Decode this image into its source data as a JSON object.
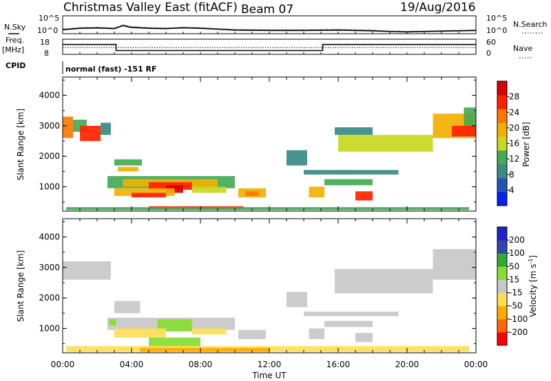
{
  "header": {
    "title": "Christmas Valley East (fitACF)",
    "beam": "Beam 07",
    "date": "19/Aug/2016"
  },
  "top_panels": {
    "nsky_label": "N.Sky",
    "nsearch_label": "N.Search",
    "noise_ticks_left": [
      "10^5",
      "10^0"
    ],
    "noise_ticks_right": [
      "10^5",
      "10^0"
    ],
    "freq_label_lines": [
      "Freq.",
      "[MHz]"
    ],
    "freq_ticks": [
      "18",
      "8"
    ],
    "nave_label": "Nave",
    "nave_ticks": [
      "60",
      "0"
    ],
    "cpid_label": "CPID",
    "cpid_text": "normal (fast) -151 RF"
  },
  "colors": {
    "power": [
      "#0022ee",
      "#2255bb",
      "#3a8a86",
      "#44aa55",
      "#c8d820",
      "#f2b000",
      "#ff7700",
      "#ff2200",
      "#d80000"
    ],
    "velocity": [
      "#ff0000",
      "#ff6600",
      "#ffaa00",
      "#ffdd55",
      "#c8c8c8",
      "#88dd33",
      "#33aa33",
      "#3344aa",
      "#2222cc"
    ],
    "ground_scatter": "#c8c8c8"
  },
  "chart_data": [
    {
      "type": "line",
      "name": "noise",
      "series": [
        {
          "name": "N.Sky",
          "style": "solid"
        },
        {
          "name": "N.Search",
          "style": "dotted"
        }
      ],
      "x": [
        0,
        1,
        2,
        3,
        3.5,
        4,
        5,
        6,
        7,
        8,
        9,
        10,
        12,
        14,
        16,
        18,
        19,
        20,
        22,
        24
      ],
      "y_solid": [
        2.2,
        3.0,
        3.2,
        2.8,
        4.5,
        3.5,
        3.0,
        2.8,
        3.3,
        3.0,
        2.5,
        2.0,
        1.8,
        1.8,
        2.0,
        1.6,
        1.2,
        1.0,
        1.4,
        1.8
      ],
      "y_dotted": [
        2.6,
        3.4,
        3.6,
        3.2,
        5.0,
        4.0,
        3.4,
        3.2,
        3.6,
        3.4,
        2.9,
        2.4,
        2.2,
        2.2,
        2.4,
        2.0,
        1.5,
        1.3,
        1.7,
        2.1
      ],
      "ylim": [
        0,
        10
      ],
      "ytick_labels": [
        "10^0",
        "10^5"
      ]
    },
    {
      "type": "line",
      "name": "frequency-nave",
      "frequency": {
        "x": [
          0,
          3.1,
          3.1,
          15.1,
          15.1,
          24
        ],
        "y": [
          14.5,
          14.5,
          10.5,
          10.5,
          14.5,
          14.5
        ],
        "ylim": [
          8,
          18
        ]
      },
      "nave": {
        "x": [
          0,
          3.1,
          3.1,
          15.1,
          15.1,
          24
        ],
        "y": [
          27,
          27,
          27,
          27,
          27,
          27
        ],
        "ylim": [
          0,
          60
        ]
      }
    },
    {
      "type": "heatmap",
      "name": "power",
      "ylabel": "Slant Range [km]",
      "yticks": [
        1000,
        2000,
        3000,
        4000
      ],
      "ylim": [
        200,
        4600
      ],
      "xlim": [
        0,
        24
      ],
      "colorbar": {
        "label": "Power [dB]",
        "ticks": [
          4,
          8,
          12,
          16,
          20,
          24,
          28
        ],
        "range": [
          0,
          32
        ]
      },
      "regions": [
        {
          "t0": 0.0,
          "t1": 0.6,
          "r0": 2600,
          "r1": 3300,
          "value": 22
        },
        {
          "t0": 0.6,
          "t1": 1.4,
          "r0": 2800,
          "r1": 3200,
          "value": 14
        },
        {
          "t0": 1.0,
          "t1": 2.2,
          "r0": 2500,
          "r1": 3000,
          "value": 26
        },
        {
          "t0": 2.2,
          "t1": 2.8,
          "r0": 2700,
          "r1": 3100,
          "value": 10
        },
        {
          "t0": 3.0,
          "t1": 4.6,
          "r0": 1700,
          "r1": 1900,
          "value": 14
        },
        {
          "t0": 3.2,
          "t1": 4.4,
          "r0": 1500,
          "r1": 1650,
          "value": 18
        },
        {
          "t0": 2.6,
          "t1": 10.0,
          "r0": 950,
          "r1": 1350,
          "value": 12
        },
        {
          "t0": 3.5,
          "t1": 9.0,
          "r0": 1000,
          "r1": 1250,
          "value": 20
        },
        {
          "t0": 5.0,
          "t1": 7.5,
          "r0": 900,
          "r1": 1150,
          "value": 27
        },
        {
          "t0": 6.0,
          "t1": 7.0,
          "r0": 800,
          "r1": 1050,
          "value": 30
        },
        {
          "t0": 3.0,
          "t1": 6.5,
          "r0": 700,
          "r1": 950,
          "value": 18
        },
        {
          "t0": 4.0,
          "t1": 6.0,
          "r0": 650,
          "r1": 800,
          "value": 26
        },
        {
          "t0": 7.5,
          "t1": 9.5,
          "r0": 800,
          "r1": 1000,
          "value": 16
        },
        {
          "t0": 10.2,
          "t1": 11.8,
          "r0": 650,
          "r1": 950,
          "value": 18
        },
        {
          "t0": 10.6,
          "t1": 11.4,
          "r0": 700,
          "r1": 850,
          "value": 24
        },
        {
          "t0": 5.0,
          "t1": 10.5,
          "r0": 260,
          "r1": 360,
          "value": 26
        },
        {
          "t0": 0.2,
          "t1": 23.6,
          "r0": 230,
          "r1": 330,
          "value": 12
        },
        {
          "t0": 13.0,
          "t1": 14.2,
          "r0": 1700,
          "r1": 2200,
          "value": 10
        },
        {
          "t0": 14.0,
          "t1": 19.5,
          "r0": 1400,
          "r1": 1550,
          "value": 8
        },
        {
          "t0": 14.3,
          "t1": 15.2,
          "r0": 650,
          "r1": 1000,
          "value": 18
        },
        {
          "t0": 15.2,
          "t1": 18.0,
          "r0": 1050,
          "r1": 1250,
          "value": 12
        },
        {
          "t0": 17.0,
          "t1": 18.0,
          "r0": 550,
          "r1": 850,
          "value": 26
        },
        {
          "t0": 15.8,
          "t1": 18.0,
          "r0": 2700,
          "r1": 2950,
          "value": 10
        },
        {
          "t0": 16.0,
          "t1": 21.5,
          "r0": 2150,
          "r1": 2700,
          "value": 17
        },
        {
          "t0": 21.5,
          "t1": 24.0,
          "r0": 2600,
          "r1": 3400,
          "value": 20
        },
        {
          "t0": 22.6,
          "t1": 24.0,
          "r0": 2650,
          "r1": 3000,
          "value": 28
        },
        {
          "t0": 23.3,
          "t1": 24.0,
          "r0": 3000,
          "r1": 3600,
          "value": 12
        }
      ]
    },
    {
      "type": "heatmap",
      "name": "velocity",
      "ylabel": "Slant Range [km]",
      "yticks": [
        1000,
        2000,
        3000,
        4000
      ],
      "ylim": [
        200,
        4600
      ],
      "xlim": [
        0,
        24
      ],
      "xlabel": "Time UT",
      "xticks": [
        0,
        4,
        8,
        12,
        16,
        20,
        24
      ],
      "xtick_labels": [
        "00:00",
        "04:00",
        "08:00",
        "12:00",
        "16:00",
        "20:00",
        "00:00"
      ],
      "colorbar": {
        "label": "Velocity [m s^-1]",
        "ticks": [
          "-200",
          "-100",
          "-50",
          "-15",
          "15",
          "50",
          "100",
          "200"
        ]
      },
      "regions": [
        {
          "t0": 0.0,
          "t1": 2.8,
          "r0": 2600,
          "r1": 3200,
          "value": "gs"
        },
        {
          "t0": 3.0,
          "t1": 4.5,
          "r0": 1500,
          "r1": 1900,
          "value": "gs"
        },
        {
          "t0": 2.6,
          "t1": 10.0,
          "r0": 950,
          "r1": 1350,
          "value": "gs"
        },
        {
          "t0": 5.5,
          "t1": 7.5,
          "r0": 900,
          "r1": 1300,
          "value": 30
        },
        {
          "t0": 2.7,
          "t1": 3.1,
          "r0": 1100,
          "r1": 1300,
          "value": 30
        },
        {
          "t0": 3.0,
          "t1": 6.0,
          "r0": 700,
          "r1": 1000,
          "value": -30
        },
        {
          "t0": 7.5,
          "t1": 9.5,
          "r0": 800,
          "r1": 1000,
          "value": -30
        },
        {
          "t0": 5.0,
          "t1": 8.0,
          "r0": 400,
          "r1": 700,
          "value": 30
        },
        {
          "t0": 10.2,
          "t1": 11.8,
          "r0": 650,
          "r1": 950,
          "value": "gs"
        },
        {
          "t0": 0.2,
          "t1": 23.6,
          "r0": 230,
          "r1": 420,
          "value": -30
        },
        {
          "t0": 4.5,
          "t1": 12.0,
          "r0": 230,
          "r1": 360,
          "value": -60
        },
        {
          "t0": 13.0,
          "t1": 14.2,
          "r0": 1700,
          "r1": 2200,
          "value": "gs"
        },
        {
          "t0": 14.0,
          "t1": 19.5,
          "r0": 1400,
          "r1": 1550,
          "value": "gs"
        },
        {
          "t0": 14.3,
          "t1": 15.2,
          "r0": 650,
          "r1": 1000,
          "value": "gs"
        },
        {
          "t0": 15.2,
          "t1": 18.0,
          "r0": 1050,
          "r1": 1250,
          "value": "gs"
        },
        {
          "t0": 17.0,
          "t1": 18.0,
          "r0": 550,
          "r1": 850,
          "value": "gs"
        },
        {
          "t0": 15.8,
          "t1": 21.5,
          "r0": 2150,
          "r1": 2950,
          "value": "gs"
        },
        {
          "t0": 21.5,
          "t1": 24.0,
          "r0": 2600,
          "r1": 3600,
          "value": "gs"
        }
      ]
    }
  ]
}
